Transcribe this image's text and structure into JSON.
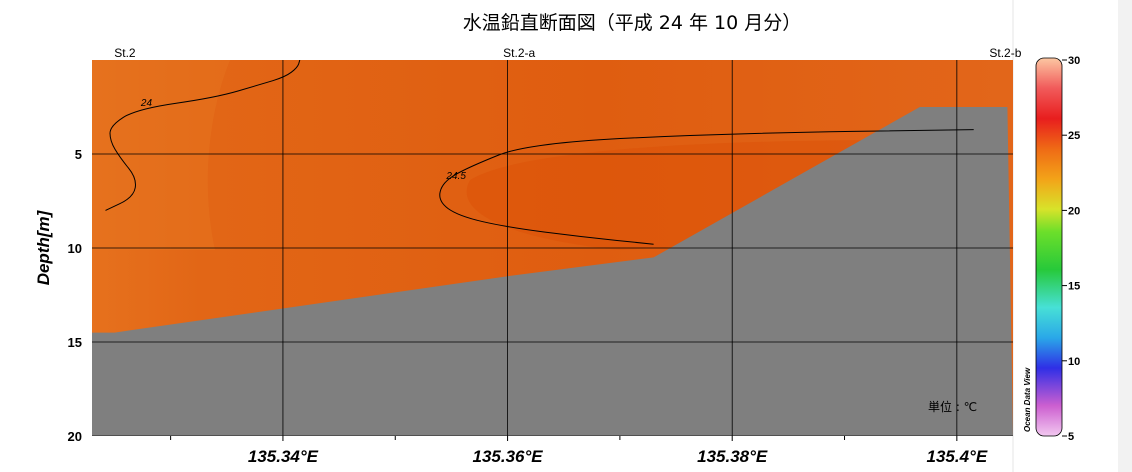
{
  "chart_data": {
    "type": "heatmap",
    "title": "水温鉛直断面図（平成 24 年 10 月分）",
    "ylabel": "Depth[m]",
    "xlabel": "",
    "x_ticks": [
      "135.34°E",
      "135.36°E",
      "135.38°E",
      "135.4°E"
    ],
    "x_tick_values": [
      135.34,
      135.36,
      135.38,
      135.4
    ],
    "xlim": [
      135.323,
      135.405
    ],
    "y_ticks": [
      "5",
      "10",
      "15",
      "20"
    ],
    "y_tick_values": [
      5,
      10,
      15,
      20
    ],
    "ylim": [
      0,
      20
    ],
    "y_reversed": true,
    "stations": [
      {
        "label": "St.2",
        "lon": 135.3232
      },
      {
        "label": "St.2-a",
        "lon": 135.3605
      },
      {
        "label": "St.2-b",
        "lon": 135.4045
      }
    ],
    "bottom_profile": {
      "lon": [
        135.323,
        135.325,
        135.36,
        135.373,
        135.3967,
        135.4045
      ],
      "depth": [
        14.5,
        14.5,
        11.5,
        10.5,
        2.5,
        2.5
      ]
    },
    "contours": [
      {
        "level": 24,
        "label": "24",
        "lon": [
          135.3415,
          135.3413,
          135.3402,
          135.338,
          135.334,
          135.327,
          135.3246,
          135.3246,
          135.3255,
          135.327,
          135.3267,
          135.3242
        ],
        "depth": [
          0,
          0.4,
          0.9,
          1.3,
          2.0,
          2.6,
          3.5,
          4.3,
          5.2,
          6.3,
          7.3,
          8.0
        ]
      },
      {
        "level": 24.5,
        "label": "24.5",
        "lon": [
          135.4015,
          135.38,
          135.362,
          135.3565,
          135.3542,
          135.3538,
          135.3556,
          135.36,
          135.3665,
          135.373
        ],
        "depth": [
          3.7,
          3.9,
          4.4,
          5.7,
          6.5,
          7.5,
          8.3,
          8.9,
          9.4,
          9.8
        ]
      }
    ],
    "colorbar": {
      "min": 5,
      "max": 30,
      "ticks": [
        "5",
        "10",
        "15",
        "20",
        "25",
        "30"
      ],
      "tick_values": [
        5,
        10,
        15,
        20,
        25,
        30
      ],
      "stops": [
        {
          "value": 5,
          "color": "#f2c8f0"
        },
        {
          "value": 7,
          "color": "#cc5fd0"
        },
        {
          "value": 9.5,
          "color": "#2f2fe6"
        },
        {
          "value": 11.5,
          "color": "#2aa8e8"
        },
        {
          "value": 13.5,
          "color": "#47e0d6"
        },
        {
          "value": 16,
          "color": "#27c93a"
        },
        {
          "value": 18.5,
          "color": "#6cdf2a"
        },
        {
          "value": 20,
          "color": "#d8e32a"
        },
        {
          "value": 22,
          "color": "#f3a318"
        },
        {
          "value": 24,
          "color": "#ef6a15"
        },
        {
          "value": 26,
          "color": "#e81e1e"
        },
        {
          "value": 28,
          "color": "#f15a5a"
        },
        {
          "value": 30,
          "color": "#fcc7a2"
        }
      ],
      "credit": "Ocean Data View"
    },
    "unit_label": "単位 : ℃",
    "colors": {
      "water_main": "#e06314",
      "water_light": "#e26d1a",
      "water_warm": "#dd5209",
      "bottom": "#7f7f7f",
      "grid": "#000000"
    }
  }
}
